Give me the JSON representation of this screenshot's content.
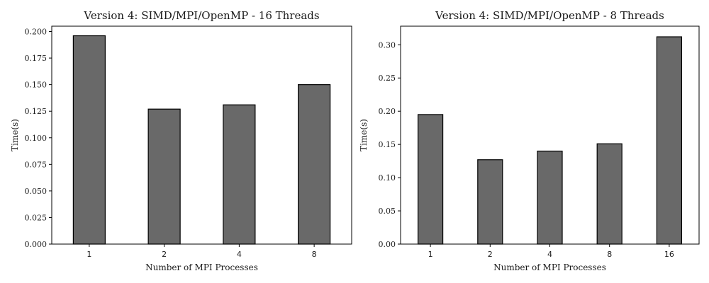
{
  "chart_data": [
    {
      "type": "bar",
      "title": "Version 4: SIMD/MPI/OpenMP - 16 Threads",
      "xlabel": "Number of MPI Processes",
      "ylabel": "Time(s)",
      "categories": [
        "1",
        "2",
        "4",
        "8"
      ],
      "values": [
        0.196,
        0.127,
        0.131,
        0.15
      ],
      "ylim": [
        0,
        0.205
      ],
      "yticks": [
        "0.000",
        "0.025",
        "0.050",
        "0.075",
        "0.100",
        "0.125",
        "0.150",
        "0.175",
        "0.200"
      ],
      "grid": false,
      "bar_color": "#696969",
      "edge_color": "#000000"
    },
    {
      "type": "bar",
      "title": "Version 4: SIMD/MPI/OpenMP - 8 Threads",
      "xlabel": "Number of MPI Processes",
      "ylabel": "Time(s)",
      "categories": [
        "1",
        "2",
        "4",
        "8",
        "16"
      ],
      "values": [
        0.195,
        0.127,
        0.14,
        0.151,
        0.312
      ],
      "ylim": [
        0,
        0.328
      ],
      "yticks": [
        "0.00",
        "0.05",
        "0.10",
        "0.15",
        "0.20",
        "0.25",
        "0.30"
      ],
      "grid": false,
      "bar_color": "#696969",
      "edge_color": "#000000"
    }
  ]
}
